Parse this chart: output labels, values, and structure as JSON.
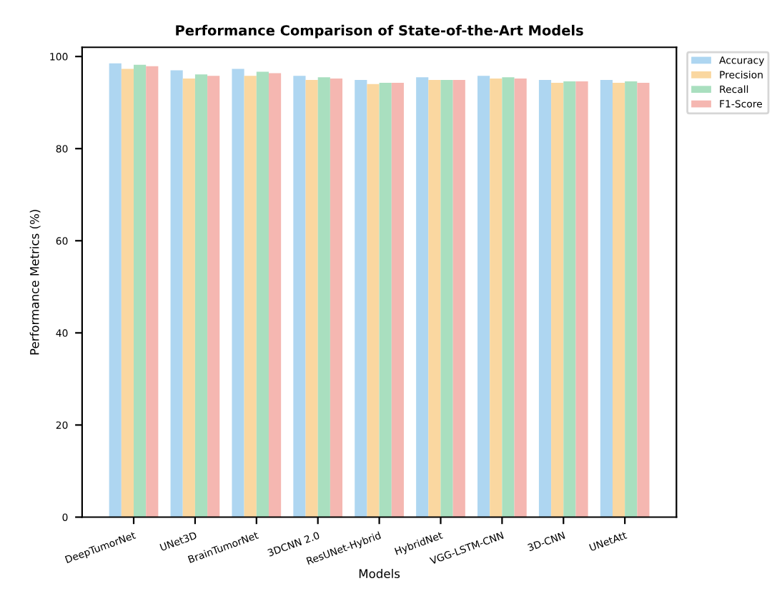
{
  "chart_data": {
    "type": "bar",
    "title": "Performance Comparison of State-of-the-Art Models",
    "xlabel": "Models",
    "ylabel": "Performance Metrics (%)",
    "categories": [
      "DeepTumorNet",
      "UNet3D",
      "BrainTumorNet",
      "3DCNN 2.0",
      "ResUNet-Hybrid",
      "HybridNet",
      "VGG-LSTM-CNN",
      "3D-CNN",
      "UNetAtt"
    ],
    "series": [
      {
        "name": "Accuracy",
        "color": "#aed6f1",
        "values": [
          98.5,
          97.0,
          97.3,
          95.8,
          94.9,
          95.5,
          95.8,
          94.9,
          94.9
        ]
      },
      {
        "name": "Precision",
        "color": "#fad7a0",
        "values": [
          97.3,
          95.2,
          95.8,
          94.9,
          94.0,
          94.9,
          95.2,
          94.3,
          94.3
        ]
      },
      {
        "name": "Recall",
        "color": "#a9dfbf",
        "values": [
          98.2,
          96.1,
          96.7,
          95.5,
          94.3,
          94.9,
          95.5,
          94.6,
          94.6
        ]
      },
      {
        "name": "F1-Score",
        "color": "#f5b7b1",
        "values": [
          97.9,
          95.8,
          96.4,
          95.2,
          94.3,
          94.9,
          95.2,
          94.6,
          94.3
        ]
      }
    ],
    "ylim": [
      0,
      102
    ],
    "yticks": [
      0,
      20,
      40,
      60,
      80,
      100
    ],
    "legend": "top right",
    "grid": false
  }
}
